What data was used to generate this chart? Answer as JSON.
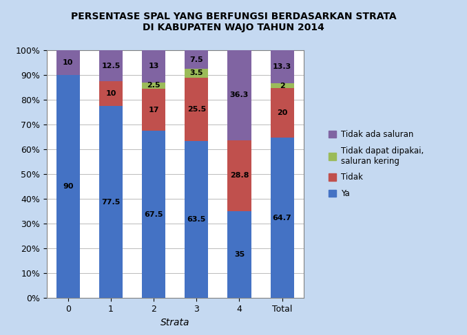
{
  "title": "PERSENTASE SPAL YANG BERFUNGSI BERDASARKAN STRATA\nDI KABUPATEN WAJO TAHUN 2014",
  "categories": [
    "0",
    "1",
    "2",
    "3",
    "4",
    "Total"
  ],
  "series": {
    "Ya": [
      90.0,
      77.5,
      67.5,
      63.5,
      35.0,
      64.7
    ],
    "Tidak": [
      0.0,
      10.0,
      17.0,
      25.5,
      28.8,
      20.0
    ],
    "Tidak dapat dipakai,\nsaluran kering": [
      0.0,
      0.0,
      2.5,
      3.5,
      0.0,
      2.0
    ],
    "Tidak ada saluran": [
      10.0,
      12.5,
      13.0,
      7.5,
      36.3,
      13.3
    ]
  },
  "colors": {
    "Ya": "#4472C4",
    "Tidak": "#C0504D",
    "Tidak dapat dipakai,\nsaluran kering": "#9BBB59",
    "Tidak ada saluran": "#8064A2"
  },
  "xlabel": "Strata",
  "ylim": [
    0,
    100
  ],
  "yticks": [
    0,
    10,
    20,
    30,
    40,
    50,
    60,
    70,
    80,
    90,
    100
  ],
  "ytick_labels": [
    "0%",
    "10%",
    "20%",
    "30%",
    "40%",
    "50%",
    "60%",
    "70%",
    "80%",
    "90%",
    "100%"
  ],
  "background_color": "#FFFFFF",
  "title_bg_color": "#C5D9F1",
  "legend_bg_color": "#C5D9F1",
  "outer_bg_color": "#C5D9F1",
  "plot_bg_color": "#FFFFFF",
  "bar_width": 0.55,
  "title_fontsize": 10,
  "label_fontsize": 8,
  "legend_fontsize": 8.5,
  "tick_fontsize": 9
}
